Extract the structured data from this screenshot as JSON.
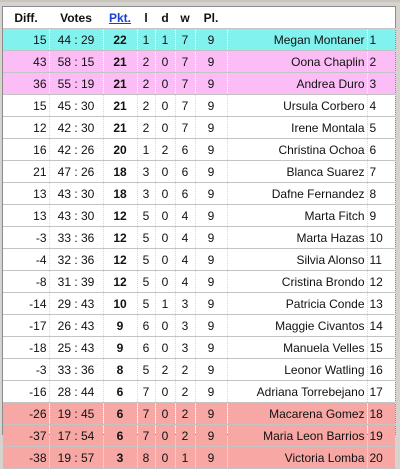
{
  "headers": [
    "Diff.",
    "Votes",
    "Pkt.",
    "l",
    "d",
    "w",
    "Pl.",
    ""
  ],
  "colors": {
    "cyan": "#82f2ee",
    "pink": "#fcbdf6",
    "red": "#f7a8a4",
    "white": "#ffffff"
  },
  "rows": [
    {
      "diff": "15",
      "votes": "44 : 29",
      "pkt": "22",
      "l": "1",
      "d": "1",
      "w": "7",
      "pl": "9",
      "name": "Megan Montaner",
      "rank": "1",
      "band": "cyan"
    },
    {
      "diff": "43",
      "votes": "58 : 15",
      "pkt": "21",
      "l": "2",
      "d": "0",
      "w": "7",
      "pl": "9",
      "name": "Oona Chaplin",
      "rank": "2",
      "band": "pink"
    },
    {
      "diff": "36",
      "votes": "55 : 19",
      "pkt": "21",
      "l": "2",
      "d": "0",
      "w": "7",
      "pl": "9",
      "name": "Andrea Duro",
      "rank": "3",
      "band": "pink"
    },
    {
      "diff": "15",
      "votes": "45 : 30",
      "pkt": "21",
      "l": "2",
      "d": "0",
      "w": "7",
      "pl": "9",
      "name": "Ursula Corbero",
      "rank": "4",
      "band": "white"
    },
    {
      "diff": "12",
      "votes": "42 : 30",
      "pkt": "21",
      "l": "2",
      "d": "0",
      "w": "7",
      "pl": "9",
      "name": "Irene Montala",
      "rank": "5",
      "band": "white"
    },
    {
      "diff": "16",
      "votes": "42 : 26",
      "pkt": "20",
      "l": "1",
      "d": "2",
      "w": "6",
      "pl": "9",
      "name": "Christina Ochoa",
      "rank": "6",
      "band": "white"
    },
    {
      "diff": "21",
      "votes": "47 : 26",
      "pkt": "18",
      "l": "3",
      "d": "0",
      "w": "6",
      "pl": "9",
      "name": "Blanca Suarez",
      "rank": "7",
      "band": "white"
    },
    {
      "diff": "13",
      "votes": "43 : 30",
      "pkt": "18",
      "l": "3",
      "d": "0",
      "w": "6",
      "pl": "9",
      "name": "Dafne Fernandez",
      "rank": "8",
      "band": "white"
    },
    {
      "diff": "13",
      "votes": "43 : 30",
      "pkt": "12",
      "l": "5",
      "d": "0",
      "w": "4",
      "pl": "9",
      "name": "Marta Fitch",
      "rank": "9",
      "band": "white"
    },
    {
      "diff": "-3",
      "votes": "33 : 36",
      "pkt": "12",
      "l": "5",
      "d": "0",
      "w": "4",
      "pl": "9",
      "name": "Marta Hazas",
      "rank": "10",
      "band": "white"
    },
    {
      "diff": "-4",
      "votes": "32 : 36",
      "pkt": "12",
      "l": "5",
      "d": "0",
      "w": "4",
      "pl": "9",
      "name": "Silvia Alonso",
      "rank": "11",
      "band": "white"
    },
    {
      "diff": "-8",
      "votes": "31 : 39",
      "pkt": "12",
      "l": "5",
      "d": "0",
      "w": "4",
      "pl": "9",
      "name": "Cristina Brondo",
      "rank": "12",
      "band": "white"
    },
    {
      "diff": "-14",
      "votes": "29 : 43",
      "pkt": "10",
      "l": "5",
      "d": "1",
      "w": "3",
      "pl": "9",
      "name": "Patricia Conde",
      "rank": "13",
      "band": "white"
    },
    {
      "diff": "-17",
      "votes": "26 : 43",
      "pkt": "9",
      "l": "6",
      "d": "0",
      "w": "3",
      "pl": "9",
      "name": "Maggie Civantos",
      "rank": "14",
      "band": "white"
    },
    {
      "diff": "-18",
      "votes": "25 : 43",
      "pkt": "9",
      "l": "6",
      "d": "0",
      "w": "3",
      "pl": "9",
      "name": "Manuela Velles",
      "rank": "15",
      "band": "white"
    },
    {
      "diff": "-3",
      "votes": "33 : 36",
      "pkt": "8",
      "l": "5",
      "d": "2",
      "w": "2",
      "pl": "9",
      "name": "Leonor Watling",
      "rank": "16",
      "band": "white"
    },
    {
      "diff": "-16",
      "votes": "28 : 44",
      "pkt": "6",
      "l": "7",
      "d": "0",
      "w": "2",
      "pl": "9",
      "name": "Adriana Torrebejano",
      "rank": "17",
      "band": "white"
    },
    {
      "diff": "-26",
      "votes": "19 : 45",
      "pkt": "6",
      "l": "7",
      "d": "0",
      "w": "2",
      "pl": "9",
      "name": "Macarena Gomez",
      "rank": "18",
      "band": "red"
    },
    {
      "diff": "-37",
      "votes": "17 : 54",
      "pkt": "6",
      "l": "7",
      "d": "0",
      "w": "2",
      "pl": "9",
      "name": "Maria Leon Barrios",
      "rank": "19",
      "band": "red"
    },
    {
      "diff": "-38",
      "votes": "19 : 57",
      "pkt": "3",
      "l": "8",
      "d": "0",
      "w": "1",
      "pl": "9",
      "name": "Victoria Lomba",
      "rank": "20",
      "band": "red"
    }
  ]
}
